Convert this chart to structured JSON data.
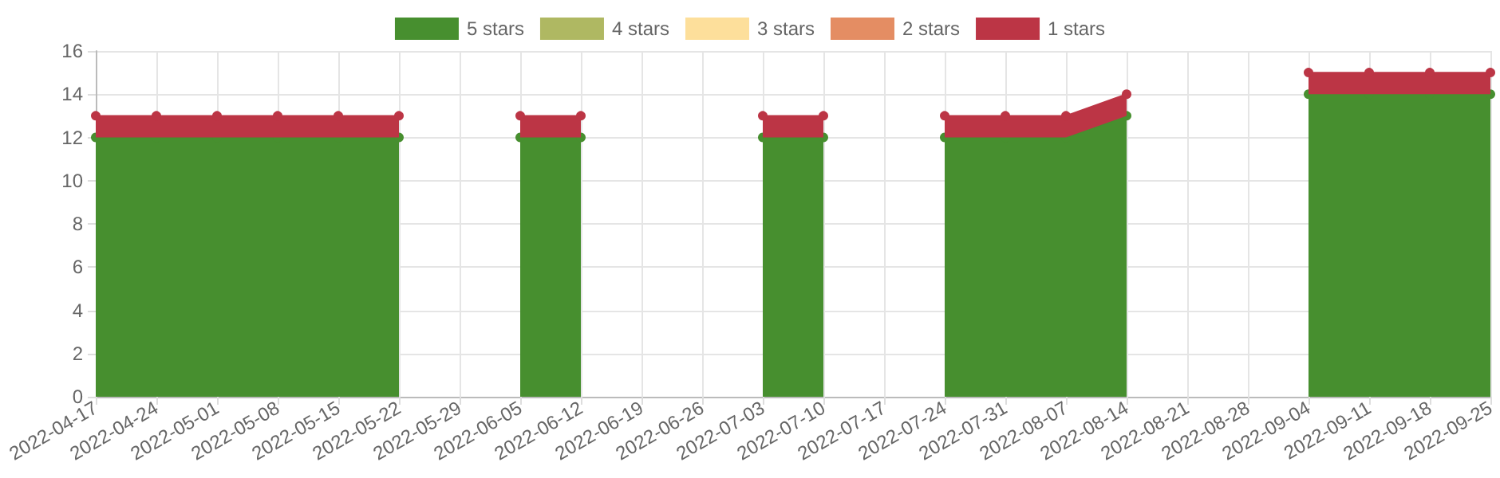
{
  "chart_data": {
    "type": "area",
    "stacked": true,
    "categories": [
      "2022-04-17",
      "2022-04-24",
      "2022-05-01",
      "2022-05-08",
      "2022-05-15",
      "2022-05-22",
      "2022-05-29",
      "2022-06-05",
      "2022-06-12",
      "2022-06-19",
      "2022-06-26",
      "2022-07-03",
      "2022-07-10",
      "2022-07-17",
      "2022-07-24",
      "2022-07-31",
      "2022-08-07",
      "2022-08-14",
      "2022-08-21",
      "2022-08-28",
      "2022-09-04",
      "2022-09-11",
      "2022-09-18",
      "2022-09-25"
    ],
    "series": [
      {
        "name": "5 stars",
        "color": "#478f2f",
        "values": [
          12,
          12,
          12,
          12,
          12,
          12,
          null,
          12,
          12,
          null,
          null,
          12,
          12,
          null,
          12,
          12,
          12,
          13,
          null,
          null,
          14,
          14,
          14,
          14
        ]
      },
      {
        "name": "4 stars",
        "color": "#afb862",
        "values": [
          null,
          null,
          null,
          null,
          null,
          null,
          null,
          null,
          null,
          null,
          null,
          null,
          null,
          null,
          null,
          null,
          null,
          null,
          null,
          null,
          null,
          null,
          null,
          null
        ]
      },
      {
        "name": "3 stars",
        "color": "#fddf9b",
        "values": [
          null,
          null,
          null,
          null,
          null,
          null,
          null,
          null,
          null,
          null,
          null,
          null,
          null,
          null,
          null,
          null,
          null,
          null,
          null,
          null,
          null,
          null,
          null,
          null
        ]
      },
      {
        "name": "2 stars",
        "color": "#e48d63",
        "values": [
          null,
          null,
          null,
          null,
          null,
          null,
          null,
          null,
          null,
          null,
          null,
          null,
          null,
          null,
          null,
          null,
          null,
          null,
          null,
          null,
          null,
          null,
          null,
          null
        ]
      },
      {
        "name": "1 stars",
        "color": "#bc3545",
        "values": [
          1,
          1,
          1,
          1,
          1,
          1,
          null,
          1,
          1,
          null,
          null,
          1,
          1,
          null,
          1,
          1,
          1,
          1,
          null,
          null,
          1,
          1,
          1,
          1
        ]
      }
    ],
    "ylim": [
      0,
      16
    ],
    "yticks": [
      0,
      2,
      4,
      6,
      8,
      10,
      12,
      14,
      16
    ],
    "grid": true,
    "legend": "top",
    "marker": "circle"
  }
}
